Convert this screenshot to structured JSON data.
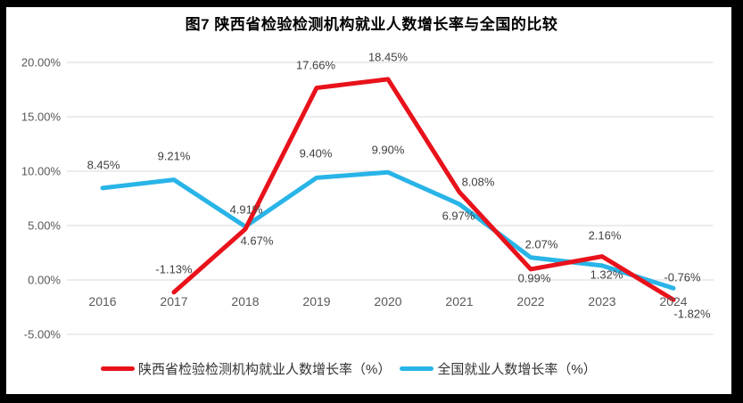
{
  "frame": {
    "border_color": "#000000",
    "background": "#ffffff"
  },
  "chart_data": {
    "type": "line",
    "title": "图7 陕西省检验检测机构就业人数增长率与全国的比较",
    "x_labels": [
      "2016",
      "2017",
      "2018",
      "2019",
      "2020",
      "2021",
      "2022",
      "2023",
      "2024"
    ],
    "y_tick_labels": [
      "20.00%",
      "15.00%",
      "10.00%",
      "5.00%",
      "0.00%",
      "-5.00%"
    ],
    "y_tick_values": [
      20,
      15,
      10,
      5,
      0,
      -5
    ],
    "ylim": [
      -5,
      20
    ],
    "grid": "horizontal-only",
    "grid_color": "#d9d9d9",
    "axis_text_color": "#595959",
    "label_text_color": "#3f3f3f",
    "legend_position": "bottom",
    "series": [
      {
        "name": "陕西省检验检测机构就业人数增长率（%）",
        "color": "#e8121b",
        "x": [
          2017,
          2018,
          2019,
          2020,
          2021,
          2022,
          2023,
          2024
        ],
        "values": [
          -1.13,
          4.67,
          17.66,
          18.45,
          8.08,
          0.99,
          2.16,
          -1.82
        ],
        "labels": [
          "-1.13%",
          "4.67%",
          "17.66%",
          "18.45%",
          "8.08%",
          "0.99%",
          "2.16%",
          "-1.82%"
        ],
        "label_offsets": [
          [
            0,
            -26
          ],
          [
            13,
            13
          ],
          [
            -1,
            -26
          ],
          [
            0,
            -25
          ],
          [
            21,
            -11
          ],
          [
            4,
            10
          ],
          [
            3,
            -24
          ],
          [
            21,
            16
          ]
        ]
      },
      {
        "name": "全国就业人数增长率（%）",
        "color": "#29b4e7",
        "x": [
          2016,
          2017,
          2018,
          2019,
          2020,
          2021,
          2022,
          2023,
          2024
        ],
        "values": [
          8.45,
          9.21,
          4.91,
          9.4,
          9.9,
          6.97,
          2.07,
          1.32,
          -0.76
        ],
        "labels": [
          "8.45%",
          "9.21%",
          "4.91%",
          "9.40%",
          "9.90%",
          "6.97%",
          "2.07%",
          "1.32%",
          "-0.76%"
        ],
        "label_offsets": [
          [
            1,
            -26
          ],
          [
            0,
            -27
          ],
          [
            1,
            -19
          ],
          [
            -1,
            -27
          ],
          [
            0,
            -25
          ],
          [
            -1,
            13
          ],
          [
            12,
            -15
          ],
          [
            5,
            10
          ],
          [
            10,
            -12
          ]
        ]
      }
    ]
  }
}
